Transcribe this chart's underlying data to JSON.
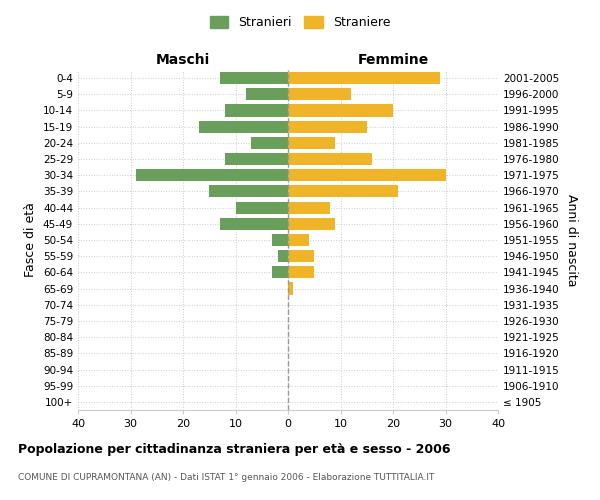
{
  "age_groups": [
    "100+",
    "95-99",
    "90-94",
    "85-89",
    "80-84",
    "75-79",
    "70-74",
    "65-69",
    "60-64",
    "55-59",
    "50-54",
    "45-49",
    "40-44",
    "35-39",
    "30-34",
    "25-29",
    "20-24",
    "15-19",
    "10-14",
    "5-9",
    "0-4"
  ],
  "birth_years": [
    "≤ 1905",
    "1906-1910",
    "1911-1915",
    "1916-1920",
    "1921-1925",
    "1926-1930",
    "1931-1935",
    "1936-1940",
    "1941-1945",
    "1946-1950",
    "1951-1955",
    "1956-1960",
    "1961-1965",
    "1966-1970",
    "1971-1975",
    "1976-1980",
    "1981-1985",
    "1986-1990",
    "1991-1995",
    "1996-2000",
    "2001-2005"
  ],
  "maschi": [
    0,
    0,
    0,
    0,
    0,
    0,
    0,
    0,
    3,
    2,
    3,
    13,
    10,
    15,
    29,
    12,
    7,
    17,
    12,
    8,
    13
  ],
  "femmine": [
    0,
    0,
    0,
    0,
    0,
    0,
    0,
    1,
    5,
    5,
    4,
    9,
    8,
    21,
    30,
    16,
    9,
    15,
    20,
    12,
    29
  ],
  "color_maschi": "#6a9e5b",
  "color_femmine": "#f0b429",
  "title": "Popolazione per cittadinanza straniera per età e sesso - 2006",
  "subtitle": "COMUNE DI CUPRAMONTANA (AN) - Dati ISTAT 1° gennaio 2006 - Elaborazione TUTTITALIA.IT",
  "xlabel_left": "Maschi",
  "xlabel_right": "Femmine",
  "ylabel_left": "Fasce di età",
  "ylabel_right": "Anni di nascita",
  "xlim": 40,
  "legend_stranieri": "Stranieri",
  "legend_straniere": "Straniere",
  "background_color": "#ffffff",
  "grid_color": "#cccccc"
}
